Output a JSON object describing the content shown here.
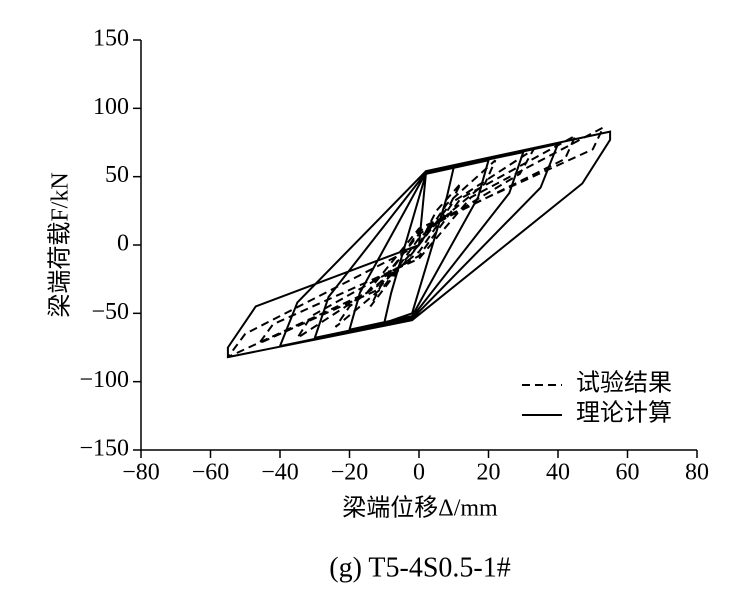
{
  "chart_data": {
    "type": "line",
    "caption": "(g) T5-4S0.5-1#",
    "x_label": "梁端位移Δ/mm",
    "y_label": "梁端荷载F/kN",
    "xlim": [
      -80,
      80
    ],
    "ylim": [
      -150,
      150
    ],
    "xticks": [
      {
        "value": -80,
        "label": "−80"
      },
      {
        "value": -60,
        "label": "−60"
      },
      {
        "value": -40,
        "label": "−40"
      },
      {
        "value": -20,
        "label": "−20"
      },
      0,
      20,
      40,
      60,
      80
    ],
    "yticks": [
      {
        "value": -150,
        "label": "−150"
      },
      {
        "value": -100,
        "label": "−100"
      },
      {
        "value": -50,
        "label": "−50"
      },
      0,
      50,
      100,
      150
    ],
    "legend_position": "lower right",
    "series": [
      {
        "name": "试验结果",
        "color": "#000000",
        "dash": "dashed",
        "x": [
          0,
          5,
          12,
          9,
          0,
          -8,
          -14,
          -11,
          0,
          8,
          22,
          19,
          0,
          -10,
          -24,
          -20,
          0,
          10,
          33,
          29,
          0,
          -12,
          -35,
          -31,
          0,
          12,
          45,
          42,
          0,
          -12,
          -46,
          -42,
          0,
          15,
          53,
          50,
          0,
          -15,
          -55,
          -50,
          0
        ],
        "values": [
          0,
          25,
          45,
          30,
          0,
          -25,
          -45,
          -30,
          0,
          30,
          62,
          45,
          5,
          -30,
          -60,
          -45,
          -5,
          32,
          70,
          52,
          8,
          -30,
          -68,
          -52,
          -8,
          34,
          80,
          63,
          10,
          -33,
          -72,
          -58,
          -10,
          35,
          86,
          70,
          12,
          -35,
          -82,
          -65,
          0
        ]
      },
      {
        "name": "理论计算",
        "color": "#000000",
        "dash": "solid",
        "x": [
          0,
          2,
          10,
          8,
          -2,
          -10,
          -8,
          2,
          20,
          17,
          -2,
          -20,
          -17,
          2,
          30,
          26,
          -2,
          -30,
          -26,
          2,
          40,
          35,
          -2,
          -40,
          -35,
          2,
          55,
          55,
          47,
          -2,
          -55,
          -55,
          -47,
          0
        ],
        "values": [
          0,
          52,
          57,
          35,
          -50,
          -57,
          -35,
          52,
          62,
          35,
          -52,
          -62,
          -35,
          53,
          68,
          38,
          -53,
          -68,
          -38,
          53,
          74,
          42,
          -54,
          -74,
          -42,
          54,
          83,
          77,
          45,
          -55,
          -82,
          -75,
          -45,
          0
        ]
      }
    ]
  }
}
